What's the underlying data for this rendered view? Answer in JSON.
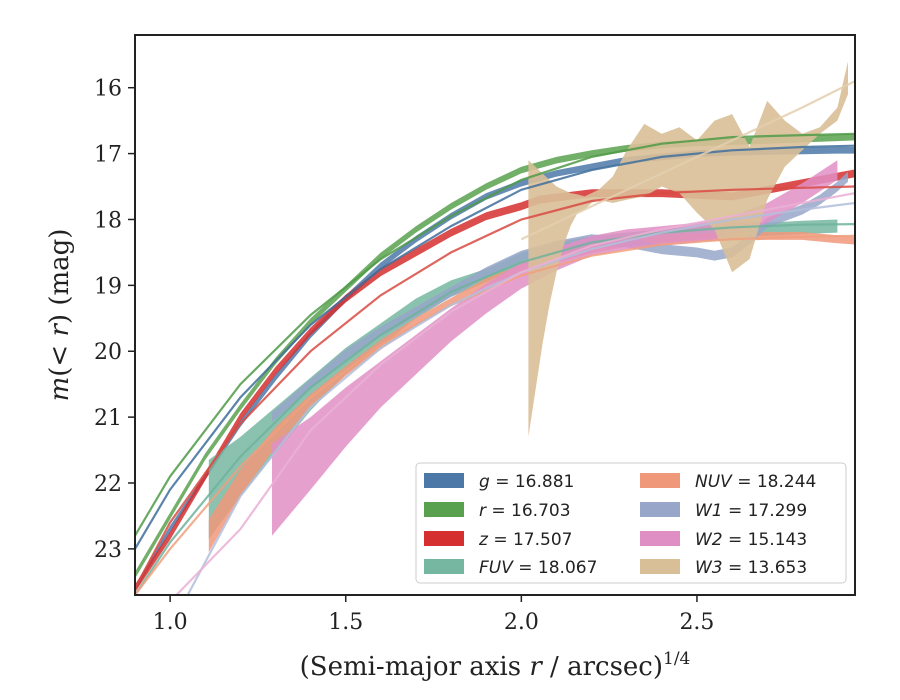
{
  "chart_data": {
    "type": "line",
    "xlabel": "(Semi-major axis r / arcsec)^{1/4}",
    "ylabel": "m(< r) (mag)",
    "xlim": [
      0.9,
      2.95
    ],
    "ylim": [
      23.7,
      15.2
    ],
    "y_inverted": true,
    "grid": false,
    "legend_position": "lower-right",
    "legend_columns": 2,
    "xticks": [
      "1.0",
      "1.5",
      "2.0",
      "2.5"
    ],
    "yticks": [
      "16",
      "17",
      "18",
      "19",
      "20",
      "21",
      "22",
      "23"
    ],
    "series": [
      {
        "name": "g = 16.881",
        "band": "g",
        "mag": "16.881",
        "color": "#4c78a8",
        "fit_color": "#3f6e9c",
        "band_x": [
          0.9,
          1.0,
          1.1,
          1.2,
          1.3,
          1.4,
          1.5,
          1.6,
          1.7,
          1.8,
          1.9,
          2.0,
          2.1,
          2.2,
          2.3,
          2.4,
          2.5,
          2.6,
          2.7,
          2.8,
          2.9,
          2.95
        ],
        "band_mid": [
          23.6,
          22.7,
          21.9,
          21.1,
          20.4,
          19.75,
          19.2,
          18.7,
          18.3,
          17.95,
          17.65,
          17.45,
          17.3,
          17.2,
          17.1,
          17.05,
          17.0,
          16.98,
          16.97,
          16.96,
          16.95,
          16.95
        ],
        "band_width": 0.1,
        "fit_x": [
          0.9,
          1.0,
          1.2,
          1.4,
          1.6,
          1.8,
          2.0,
          2.2,
          2.4,
          2.6,
          2.8,
          2.95
        ],
        "fit_y": [
          23.0,
          22.1,
          20.7,
          19.6,
          18.75,
          18.1,
          17.55,
          17.25,
          17.05,
          16.95,
          16.9,
          16.88
        ]
      },
      {
        "name": "r = 16.703",
        "band": "r",
        "mag": "16.703",
        "color": "#59a14f",
        "fit_color": "#4f9a46",
        "band_x": [
          0.9,
          1.0,
          1.1,
          1.2,
          1.3,
          1.4,
          1.5,
          1.6,
          1.7,
          1.8,
          1.9,
          2.0,
          2.1,
          2.2,
          2.3,
          2.4,
          2.5,
          2.6,
          2.7,
          2.8,
          2.9,
          2.95
        ],
        "band_mid": [
          23.4,
          22.5,
          21.6,
          20.85,
          20.15,
          19.55,
          19.05,
          18.55,
          18.15,
          17.8,
          17.5,
          17.25,
          17.1,
          17.0,
          16.92,
          16.87,
          16.84,
          16.82,
          16.8,
          16.78,
          16.76,
          16.75
        ],
        "band_width": 0.1,
        "fit_x": [
          0.9,
          1.0,
          1.2,
          1.4,
          1.6,
          1.8,
          2.0,
          2.2,
          2.4,
          2.6,
          2.8,
          2.95
        ],
        "fit_y": [
          22.8,
          21.9,
          20.5,
          19.45,
          18.6,
          17.95,
          17.4,
          17.05,
          16.85,
          16.75,
          16.72,
          16.7
        ]
      },
      {
        "name": "z = 17.507",
        "band": "z",
        "mag": "17.507",
        "color": "#d62f2f",
        "fit_color": "#d94a43",
        "band_x": [
          0.9,
          1.0,
          1.1,
          1.2,
          1.3,
          1.4,
          1.5,
          1.6,
          1.7,
          1.8,
          1.9,
          2.0,
          2.05,
          2.2,
          2.4,
          2.6,
          2.8,
          2.95
        ],
        "band_mid": [
          23.6,
          22.8,
          21.9,
          21.0,
          20.3,
          19.7,
          19.2,
          18.8,
          18.5,
          18.2,
          17.95,
          17.8,
          17.7,
          17.6,
          17.6,
          17.65,
          17.45,
          17.3
        ],
        "band_width": 0.12,
        "fit_x": [
          0.9,
          1.0,
          1.2,
          1.4,
          1.6,
          1.8,
          2.0,
          2.2,
          2.4,
          2.6,
          2.8,
          2.95
        ],
        "fit_y": [
          23.6,
          22.6,
          21.1,
          20.0,
          19.15,
          18.5,
          18.0,
          17.72,
          17.6,
          17.55,
          17.52,
          17.5
        ]
      },
      {
        "name": "FUV = 18.067",
        "band": "FUV",
        "mag": "18.067",
        "color": "#76b7a1",
        "fit_color": "#6fb39c",
        "band_x": [
          1.11,
          1.2,
          1.3,
          1.4,
          1.5,
          1.6,
          1.7,
          1.8,
          1.9,
          2.0,
          2.1,
          2.2,
          2.3,
          2.4,
          2.5,
          2.6,
          2.7,
          2.8,
          2.9
        ],
        "band_mid": [
          22.25,
          21.75,
          21.2,
          20.65,
          20.15,
          19.75,
          19.35,
          19.05,
          18.85,
          18.6,
          18.45,
          18.35,
          18.3,
          18.25,
          18.2,
          18.15,
          18.15,
          18.12,
          18.1
        ],
        "band_width": [
          1.2,
          0.9,
          0.7,
          0.5,
          0.4,
          0.35,
          0.3,
          0.25,
          0.2,
          0.2,
          0.2,
          0.2,
          0.2,
          0.2,
          0.2,
          0.2,
          0.2,
          0.2,
          0.2
        ],
        "fit_x": [
          0.9,
          1.0,
          1.2,
          1.4,
          1.6,
          1.8,
          2.0,
          2.2,
          2.4,
          2.6,
          2.8,
          2.95
        ],
        "fit_y": [
          23.7,
          22.9,
          21.6,
          20.55,
          19.75,
          19.1,
          18.65,
          18.35,
          18.2,
          18.12,
          18.08,
          18.07
        ]
      },
      {
        "name": "NUV = 18.244",
        "band": "NUV",
        "mag": "18.244",
        "color": "#f0987a",
        "fit_color": "#f0a07f",
        "band_x": [
          1.11,
          1.2,
          1.3,
          1.4,
          1.5,
          1.6,
          1.7,
          1.8,
          1.9,
          2.0,
          2.1,
          2.2,
          2.3,
          2.4,
          2.5,
          2.6,
          2.7,
          2.8,
          2.9,
          2.95
        ],
        "band_mid": [
          22.8,
          22.0,
          21.3,
          20.75,
          20.3,
          19.9,
          19.55,
          19.25,
          18.95,
          18.75,
          18.6,
          18.45,
          18.35,
          18.3,
          18.27,
          18.26,
          18.25,
          18.25,
          18.3,
          18.32
        ],
        "band_width": [
          0.5,
          0.4,
          0.3,
          0.2,
          0.15,
          0.15,
          0.12,
          0.12,
          0.12,
          0.12,
          0.12,
          0.12,
          0.12,
          0.12,
          0.12,
          0.12,
          0.12,
          0.12,
          0.12,
          0.12
        ],
        "fit_x": [
          0.9,
          1.0,
          1.2,
          1.4,
          1.6,
          1.8,
          2.0,
          2.2,
          2.4,
          2.6,
          2.8,
          2.95
        ],
        "fit_y": [
          23.7,
          23.0,
          21.75,
          20.7,
          19.9,
          19.3,
          18.85,
          18.55,
          18.38,
          18.3,
          18.26,
          18.25
        ]
      },
      {
        "name": "W1 = 17.299",
        "band": "W1",
        "mag": "17.299",
        "color": "#97a6c9",
        "fit_color": "#b3bedb",
        "band_x": [
          1.29,
          1.4,
          1.5,
          1.6,
          1.7,
          1.8,
          1.9,
          2.0,
          2.1,
          2.2,
          2.3,
          2.4,
          2.5,
          2.55,
          2.6,
          2.65,
          2.7,
          2.75,
          2.8,
          2.85,
          2.9,
          2.93
        ],
        "band_mid": [
          21.0,
          20.5,
          20.05,
          19.7,
          19.4,
          19.1,
          18.8,
          18.55,
          18.4,
          18.3,
          18.35,
          18.45,
          18.5,
          18.55,
          18.5,
          18.3,
          18.05,
          17.95,
          17.85,
          17.7,
          17.5,
          17.35
        ],
        "band_width": 0.15,
        "fit_x": [
          1.05,
          1.2,
          1.4,
          1.6,
          1.8,
          2.0,
          2.2,
          2.4,
          2.6,
          2.8,
          2.95
        ],
        "fit_y": [
          23.7,
          22.2,
          20.85,
          19.95,
          19.3,
          18.8,
          18.45,
          18.2,
          18.0,
          17.85,
          17.75
        ]
      },
      {
        "name": "W2 = 15.143",
        "band": "W2",
        "mag": "15.143",
        "color": "#e08fc5",
        "fit_color": "#eab0d5",
        "band_x": [
          1.29,
          1.4,
          1.5,
          1.6,
          1.7,
          1.8,
          1.9,
          2.0,
          2.1,
          2.2,
          2.3,
          2.4,
          2.5,
          2.6,
          2.7,
          2.8,
          2.9
        ],
        "band_mid": [
          22.1,
          21.55,
          21.0,
          20.5,
          20.05,
          19.6,
          19.2,
          18.85,
          18.6,
          18.4,
          18.3,
          18.25,
          18.2,
          18.1,
          17.9,
          17.6,
          17.25
        ],
        "band_width": [
          1.4,
          1.1,
          0.9,
          0.7,
          0.6,
          0.5,
          0.45,
          0.4,
          0.35,
          0.3,
          0.3,
          0.3,
          0.3,
          0.3,
          0.3,
          0.3,
          0.3
        ],
        "fit_x": [
          0.9,
          1.0,
          1.2,
          1.4,
          1.6,
          1.8,
          2.0,
          2.2,
          2.4,
          2.6,
          2.8,
          2.95
        ],
        "fit_y": [
          23.9,
          23.8,
          22.7,
          21.2,
          20.2,
          19.4,
          18.8,
          18.4,
          18.15,
          17.95,
          17.75,
          17.6
        ]
      },
      {
        "name": "W3 = 13.653",
        "band": "W3",
        "mag": "13.653",
        "color": "#d9bf98",
        "fit_color": "#e3cfae",
        "band_x": [
          2.02,
          2.04,
          2.06,
          2.08,
          2.1,
          2.12,
          2.14,
          2.16,
          2.18,
          2.2,
          2.22,
          2.26,
          2.3,
          2.35,
          2.4,
          2.45,
          2.5,
          2.55,
          2.6,
          2.65,
          2.7,
          2.75,
          2.8,
          2.85,
          2.9,
          2.93
        ],
        "band_top": [
          17.1,
          17.2,
          17.3,
          17.4,
          17.5,
          17.55,
          17.6,
          17.62,
          17.65,
          17.6,
          17.55,
          17.35,
          16.95,
          16.55,
          16.7,
          16.6,
          16.8,
          16.5,
          16.4,
          16.9,
          16.2,
          16.5,
          16.7,
          16.6,
          16.3,
          15.6
        ],
        "band_bottom": [
          21.3,
          20.6,
          19.9,
          19.3,
          18.8,
          18.4,
          18.1,
          17.9,
          17.85,
          17.75,
          17.7,
          17.75,
          17.7,
          17.65,
          17.5,
          17.6,
          17.9,
          18.15,
          18.8,
          18.6,
          17.7,
          17.2,
          16.95,
          16.7,
          16.5,
          16.1
        ],
        "fit_x": [
          2.0,
          2.2,
          2.4,
          2.6,
          2.8,
          2.95
        ],
        "fit_y": [
          18.3,
          17.8,
          17.3,
          16.8,
          16.3,
          15.9
        ]
      }
    ]
  },
  "axis_labels": {
    "x_main": "(Semi-major axis ",
    "x_var": "r",
    "x_rest": " / arcsec)",
    "x_exp": "1/4",
    "y_main_pre": "m",
    "y_main_mid": "(< ",
    "y_var": "r",
    "y_main_post": ") (mag)"
  }
}
